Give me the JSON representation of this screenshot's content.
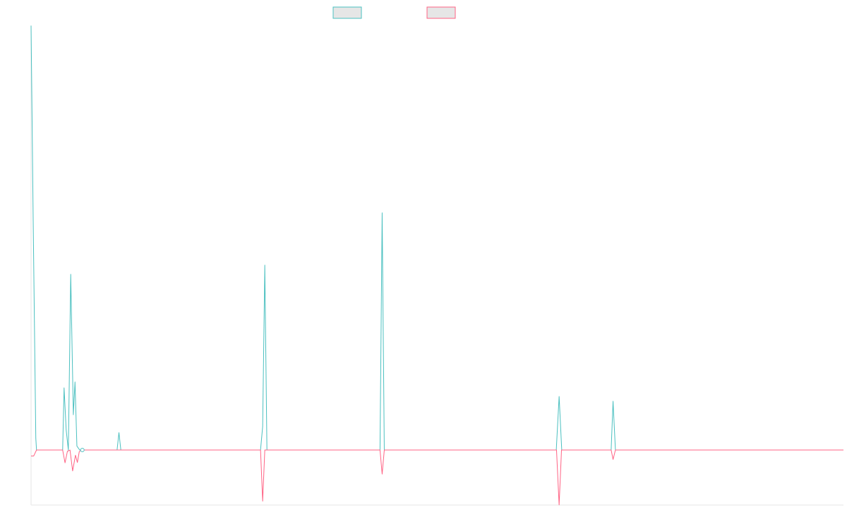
{
  "chart_data": {
    "type": "line",
    "title": "",
    "xlabel": "",
    "ylabel": "",
    "grid": false,
    "legend": {
      "placement": "top-center",
      "entries": [
        {
          "name": "",
          "color": "#4bc0c0"
        },
        {
          "name": "",
          "color": "#ff6384"
        }
      ]
    },
    "xlim": [
      0,
      342
    ],
    "ylim": [
      -42.1,
      325.0
    ],
    "series": [
      {
        "name": "",
        "color": "#4bc0c0",
        "x": [
          0,
          0.9,
          2,
          2.3,
          13.3,
          13.9,
          14.8,
          15.7,
          16.7,
          17.8,
          18.5,
          19.3,
          20.5,
          21.2,
          22.5,
          36.2,
          37,
          37.8,
          96.6,
          97.5,
          98.4,
          99.3,
          146.9,
          147.8,
          148.7,
          221.1,
          222.3,
          223.4,
          244.2,
          245,
          246,
          342
        ],
        "y": [
          324.8,
          175.0,
          9.0,
          0,
          0,
          47.6,
          15.0,
          0,
          134.5,
          27.0,
          52.1,
          3.0,
          0,
          0,
          0,
          0,
          13.3,
          0,
          0,
          18.0,
          141.5,
          0,
          0,
          181.5,
          0,
          0,
          41.0,
          0,
          0,
          37.3,
          0,
          0
        ]
      },
      {
        "name": "",
        "color": "#ff6384",
        "x": [
          0,
          1.1,
          2.3,
          13.3,
          14.3,
          15.3,
          16.4,
          17.5,
          18.7,
          19.5,
          20.3,
          21.3,
          22.3,
          96.6,
          97.5,
          98.4,
          146.9,
          147.8,
          148.7,
          221.2,
          222.3,
          223.3,
          244.2,
          245,
          246,
          342
        ],
        "y": [
          -4.6,
          -4.6,
          0,
          0,
          -9.8,
          -1.0,
          0,
          -16.0,
          -4.0,
          -9.5,
          -1.2,
          0,
          0,
          0,
          -39.1,
          0,
          0,
          -18.4,
          0,
          0,
          -42.0,
          0,
          0,
          -7.2,
          0,
          0
        ]
      }
    ]
  }
}
